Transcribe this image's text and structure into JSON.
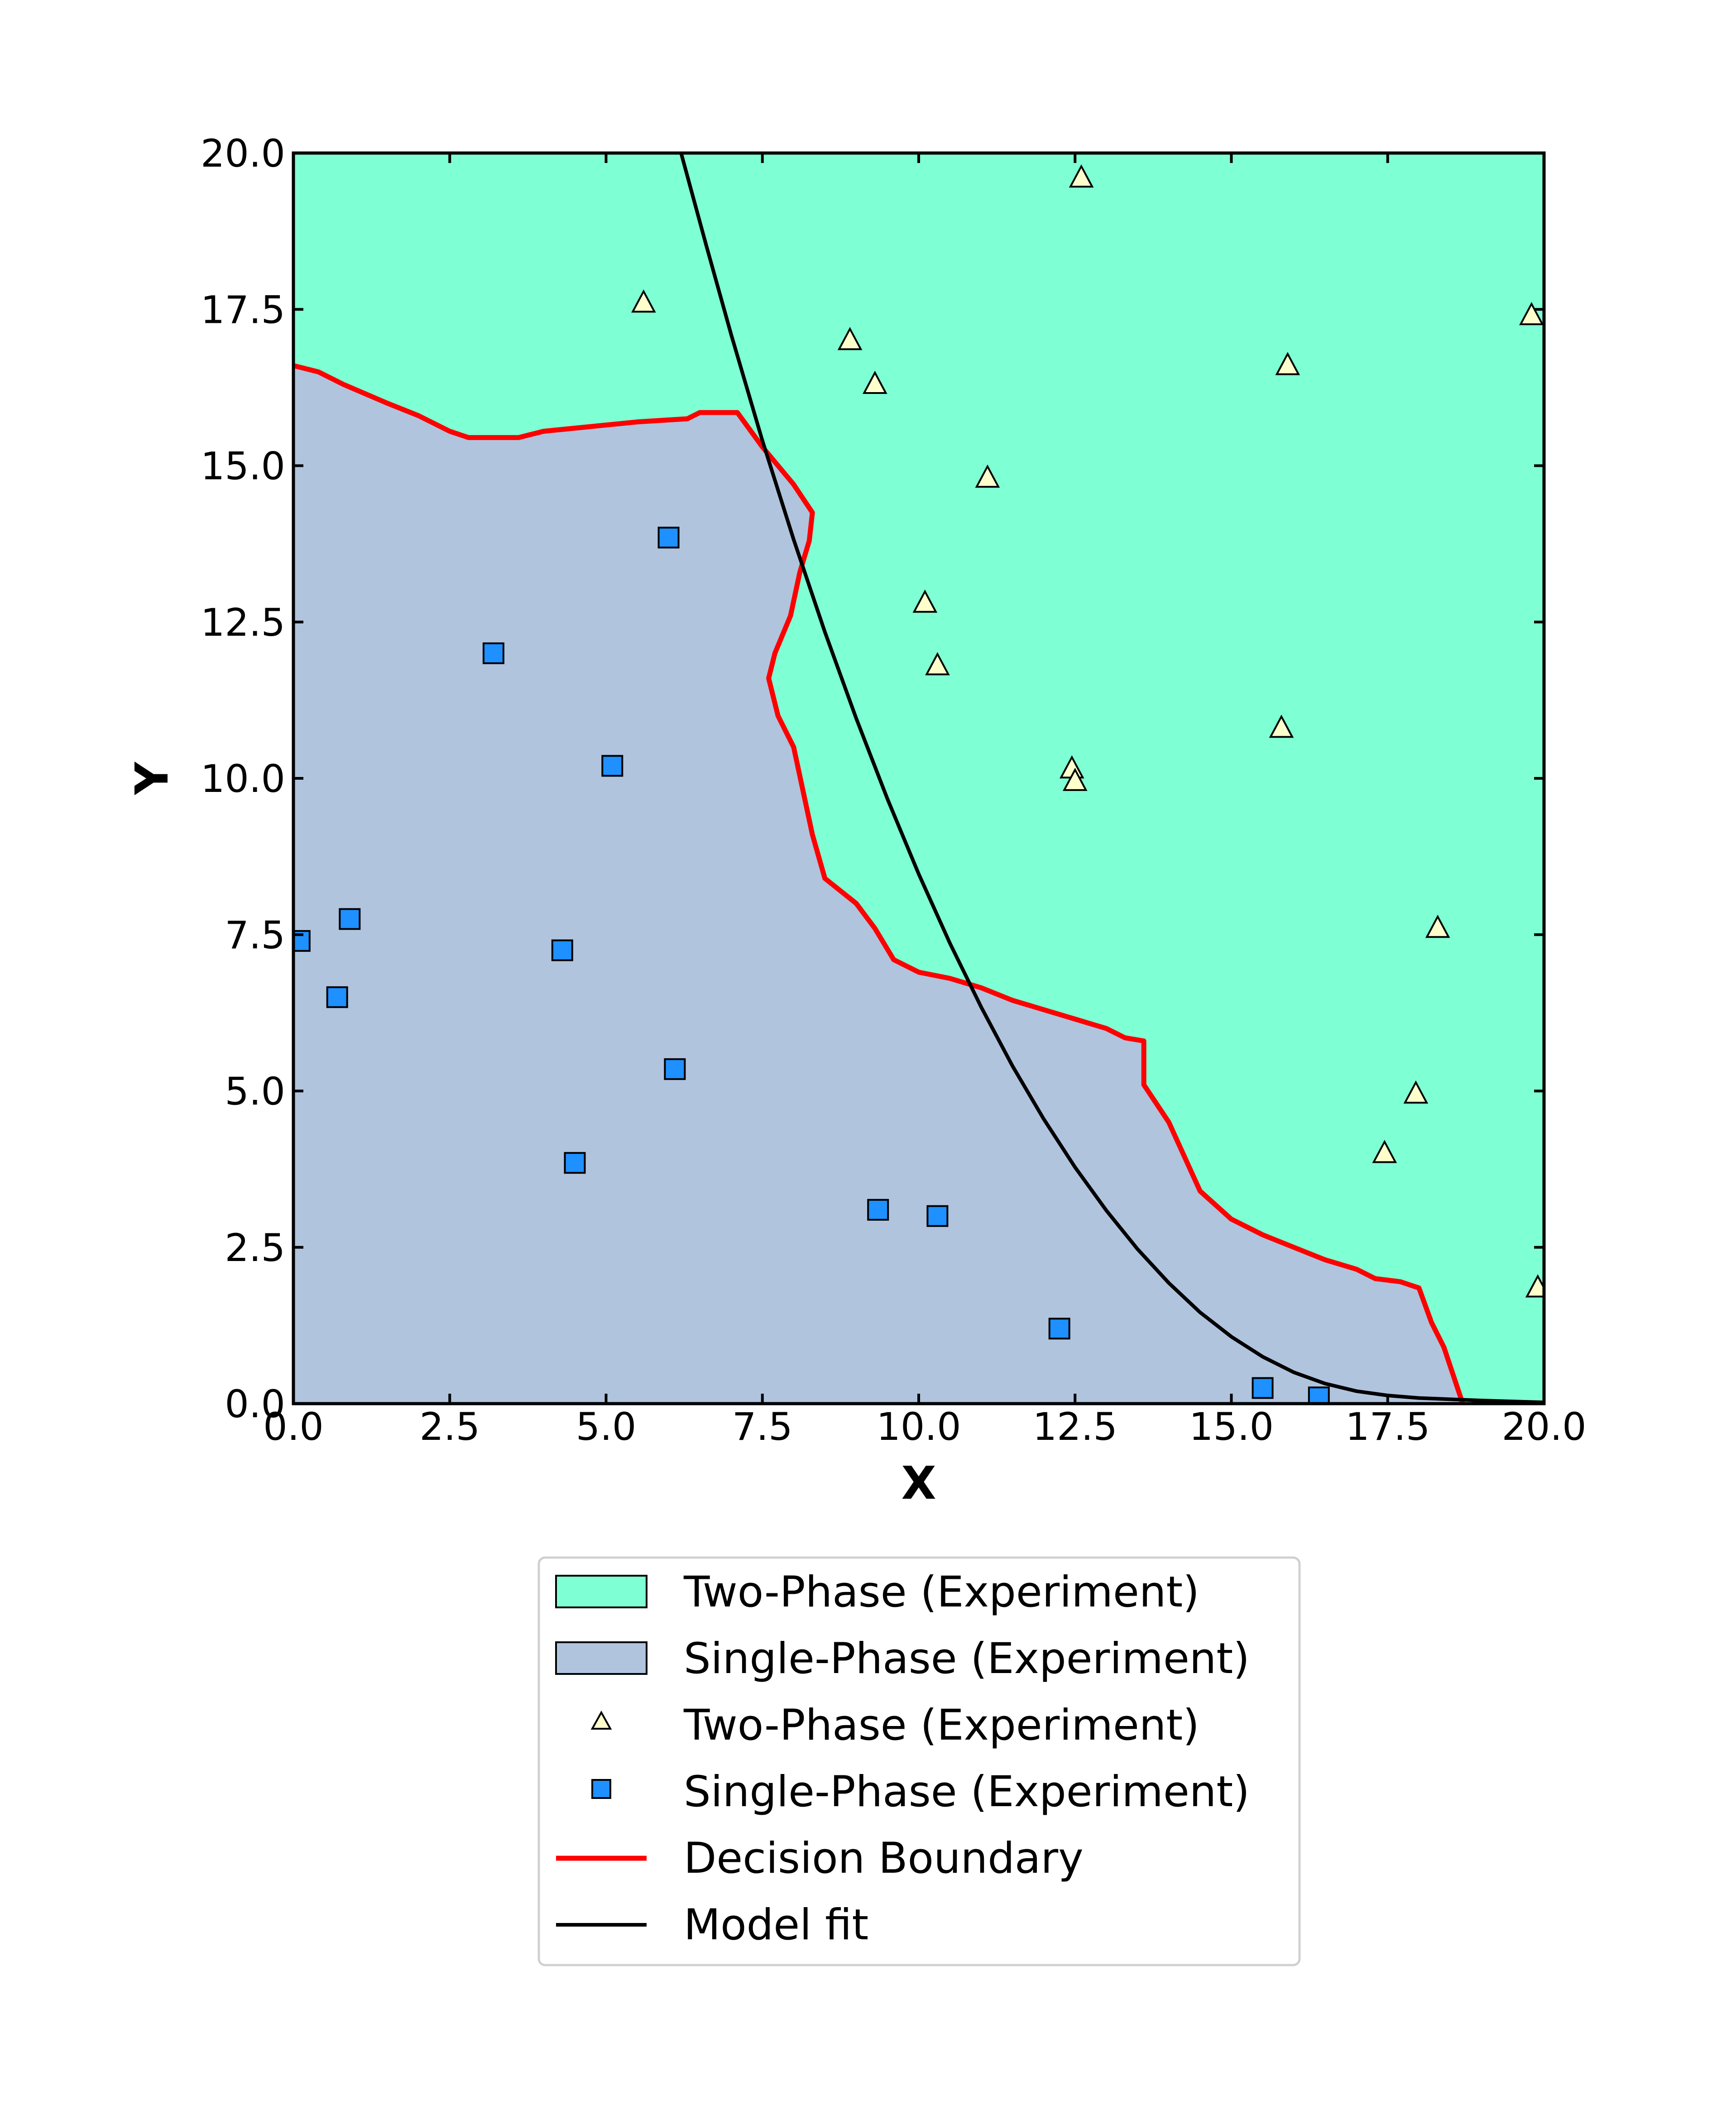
{
  "chart_data": {
    "type": "scatter",
    "title": "",
    "xlabel": "X",
    "ylabel": "Y",
    "xlim": [
      0,
      20
    ],
    "ylim": [
      0,
      20
    ],
    "xticks": [
      "0.0",
      "2.5",
      "5.0",
      "7.5",
      "10.0",
      "12.5",
      "15.0",
      "17.5",
      "20.0"
    ],
    "yticks": [
      "0.0",
      "2.5",
      "5.0",
      "7.5",
      "10.0",
      "12.5",
      "15.0",
      "17.5",
      "20.0"
    ],
    "grid": false,
    "legend_position": "below",
    "colors": {
      "two_phase_region": "#7fffd4",
      "single_phase_region": "#b0c4de",
      "two_phase_marker": "#ffffcc",
      "single_phase_marker": "#1e90ff",
      "decision_boundary": "#ff0000",
      "model_fit": "#000000"
    },
    "regions": [
      {
        "name": "Two-Phase (Experiment)",
        "color": "#7fffd4"
      },
      {
        "name": "Single-Phase (Experiment)",
        "color": "#b0c4de"
      }
    ],
    "series": [
      {
        "name": "Two-Phase (Experiment)",
        "marker": "triangle",
        "points": [
          [
            12.6,
            19.6
          ],
          [
            5.6,
            17.6
          ],
          [
            19.8,
            17.4
          ],
          [
            8.9,
            17.0
          ],
          [
            9.3,
            16.3
          ],
          [
            15.9,
            16.6
          ],
          [
            11.1,
            14.8
          ],
          [
            10.1,
            12.8
          ],
          [
            10.3,
            11.8
          ],
          [
            15.8,
            10.8
          ],
          [
            12.45,
            10.15
          ],
          [
            12.5,
            9.95
          ],
          [
            18.3,
            7.6
          ],
          [
            17.95,
            4.95
          ],
          [
            17.45,
            4.0
          ],
          [
            19.9,
            1.85
          ]
        ]
      },
      {
        "name": "Single-Phase (Experiment)",
        "marker": "square",
        "points": [
          [
            6.0,
            13.85
          ],
          [
            3.2,
            12.0
          ],
          [
            5.1,
            10.2
          ],
          [
            0.9,
            7.75
          ],
          [
            0.1,
            7.4
          ],
          [
            4.3,
            7.25
          ],
          [
            0.7,
            6.5
          ],
          [
            6.1,
            5.35
          ],
          [
            4.5,
            3.85
          ],
          [
            9.35,
            3.1
          ],
          [
            10.3,
            3.0
          ],
          [
            12.25,
            1.2
          ],
          [
            15.5,
            0.25
          ],
          [
            16.4,
            0.1
          ]
        ]
      },
      {
        "name": "Decision Boundary",
        "style": "line",
        "points": [
          [
            0.0,
            16.6
          ],
          [
            0.4,
            16.5
          ],
          [
            0.8,
            16.3
          ],
          [
            1.5,
            16.0
          ],
          [
            2.0,
            15.8
          ],
          [
            2.5,
            15.55
          ],
          [
            2.8,
            15.45
          ],
          [
            3.6,
            15.45
          ],
          [
            4.0,
            15.55
          ],
          [
            5.0,
            15.65
          ],
          [
            5.5,
            15.7
          ],
          [
            6.3,
            15.75
          ],
          [
            6.5,
            15.85
          ],
          [
            7.1,
            15.85
          ],
          [
            7.5,
            15.3
          ],
          [
            8.0,
            14.7
          ],
          [
            8.3,
            14.25
          ],
          [
            8.25,
            13.8
          ],
          [
            8.1,
            13.3
          ],
          [
            7.95,
            12.6
          ],
          [
            7.7,
            12.0
          ],
          [
            7.6,
            11.6
          ],
          [
            7.75,
            11.0
          ],
          [
            8.0,
            10.5
          ],
          [
            8.15,
            9.8
          ],
          [
            8.3,
            9.1
          ],
          [
            8.5,
            8.4
          ],
          [
            9.0,
            8.0
          ],
          [
            9.3,
            7.6
          ],
          [
            9.6,
            7.1
          ],
          [
            10.0,
            6.9
          ],
          [
            10.5,
            6.8
          ],
          [
            11.0,
            6.65
          ],
          [
            11.5,
            6.45
          ],
          [
            12.0,
            6.3
          ],
          [
            12.5,
            6.15
          ],
          [
            13.0,
            6.0
          ],
          [
            13.3,
            5.85
          ],
          [
            13.6,
            5.8
          ],
          [
            13.6,
            5.1
          ],
          [
            13.8,
            4.8
          ],
          [
            14.0,
            4.5
          ],
          [
            14.5,
            3.4
          ],
          [
            15.0,
            2.95
          ],
          [
            15.5,
            2.7
          ],
          [
            16.0,
            2.5
          ],
          [
            16.5,
            2.3
          ],
          [
            17.0,
            2.15
          ],
          [
            17.3,
            2.0
          ],
          [
            17.7,
            1.95
          ],
          [
            18.0,
            1.85
          ],
          [
            18.2,
            1.3
          ],
          [
            18.4,
            0.9
          ],
          [
            18.6,
            0.3
          ],
          [
            18.7,
            0.0
          ]
        ]
      },
      {
        "name": "Model fit",
        "style": "line",
        "points": [
          [
            6.2,
            20.0
          ],
          [
            6.6,
            18.53
          ],
          [
            7.0,
            17.1
          ],
          [
            7.5,
            15.4
          ],
          [
            8.0,
            13.82
          ],
          [
            8.5,
            12.34
          ],
          [
            9.0,
            10.96
          ],
          [
            9.5,
            9.67
          ],
          [
            10.0,
            8.47
          ],
          [
            10.5,
            7.36
          ],
          [
            11.0,
            6.34
          ],
          [
            11.5,
            5.4
          ],
          [
            12.0,
            4.55
          ],
          [
            12.5,
            3.78
          ],
          [
            13.0,
            3.09
          ],
          [
            13.5,
            2.47
          ],
          [
            14.0,
            1.93
          ],
          [
            14.5,
            1.46
          ],
          [
            15.0,
            1.07
          ],
          [
            15.5,
            0.75
          ],
          [
            16.0,
            0.5
          ],
          [
            16.5,
            0.32
          ],
          [
            17.0,
            0.2
          ],
          [
            17.5,
            0.13
          ],
          [
            18.0,
            0.09
          ],
          [
            19.0,
            0.05
          ],
          [
            20.0,
            0.02
          ]
        ]
      }
    ]
  }
}
